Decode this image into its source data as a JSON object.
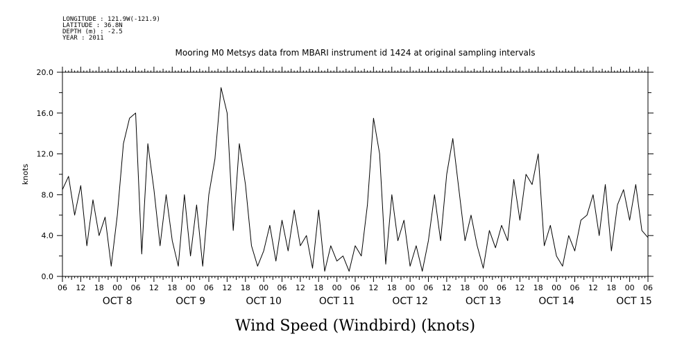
{
  "header": {
    "longitude": "LONGITUDE : 121.9W(-121.9)",
    "latitude": "LATITUDE : 36.8N",
    "depth": "DEPTH (m) : -2.5",
    "year": "YEAR : 2011"
  },
  "chart_data": {
    "type": "line",
    "title": "Mooring M0 Metsys data from MBARI instrument id 1424 at original sampling intervals",
    "xlabel": "Wind Speed (Windbird) (knots)",
    "ylabel": "knots",
    "ylim": [
      0,
      20
    ],
    "yticks": [
      "0.0",
      "4.0",
      "8.0",
      "12.0",
      "16.0",
      "20.0"
    ],
    "xlim": [
      "2011-10-07 06:00",
      "2011-10-15 06:00"
    ],
    "x_hour_ticks": [
      "06",
      "12",
      "18",
      "00",
      "06",
      "12",
      "18",
      "00",
      "06",
      "12",
      "18",
      "00",
      "06",
      "12",
      "18",
      "00",
      "06",
      "12",
      "18",
      "00",
      "06",
      "12",
      "18",
      "00",
      "06",
      "12",
      "18",
      "00",
      "06",
      "12",
      "18",
      "00",
      "06"
    ],
    "day_labels": [
      "OCT  8",
      "OCT  9",
      "OCT 10",
      "OCT 11",
      "OCT 12",
      "OCT 13",
      "OCT 14",
      "OCT 15"
    ],
    "grid": false,
    "series": [
      {
        "x": [
          "2011-10-07 06:00",
          "2011-10-07 08:00",
          "2011-10-07 10:00",
          "2011-10-07 12:00",
          "2011-10-07 14:00",
          "2011-10-07 16:00",
          "2011-10-07 18:00",
          "2011-10-07 20:00",
          "2011-10-07 22:00",
          "2011-10-08 00:00",
          "2011-10-08 02:00",
          "2011-10-08 04:00",
          "2011-10-08 06:00",
          "2011-10-08 08:00",
          "2011-10-08 10:00",
          "2011-10-08 12:00",
          "2011-10-08 14:00",
          "2011-10-08 16:00",
          "2011-10-08 18:00",
          "2011-10-08 20:00",
          "2011-10-08 22:00",
          "2011-10-09 00:00",
          "2011-10-09 02:00",
          "2011-10-09 04:00",
          "2011-10-09 06:00",
          "2011-10-09 08:00",
          "2011-10-09 10:00",
          "2011-10-09 12:00",
          "2011-10-09 14:00",
          "2011-10-09 16:00",
          "2011-10-09 18:00",
          "2011-10-09 20:00",
          "2011-10-09 22:00",
          "2011-10-10 00:00",
          "2011-10-10 02:00",
          "2011-10-10 04:00",
          "2011-10-10 06:00",
          "2011-10-10 08:00",
          "2011-10-10 10:00",
          "2011-10-10 12:00",
          "2011-10-10 14:00",
          "2011-10-10 16:00",
          "2011-10-10 18:00",
          "2011-10-10 20:00",
          "2011-10-10 22:00",
          "2011-10-11 00:00",
          "2011-10-11 02:00",
          "2011-10-11 04:00",
          "2011-10-11 06:00",
          "2011-10-11 08:00",
          "2011-10-11 10:00",
          "2011-10-11 12:00",
          "2011-10-11 14:00",
          "2011-10-11 16:00",
          "2011-10-11 18:00",
          "2011-10-11 20:00",
          "2011-10-11 22:00",
          "2011-10-12 00:00",
          "2011-10-12 02:00",
          "2011-10-12 04:00",
          "2011-10-12 06:00",
          "2011-10-12 08:00",
          "2011-10-12 10:00",
          "2011-10-12 12:00",
          "2011-10-12 14:00",
          "2011-10-12 16:00",
          "2011-10-12 18:00",
          "2011-10-12 20:00",
          "2011-10-12 22:00",
          "2011-10-13 00:00",
          "2011-10-13 02:00",
          "2011-10-13 04:00",
          "2011-10-13 06:00",
          "2011-10-13 08:00",
          "2011-10-13 10:00",
          "2011-10-13 12:00",
          "2011-10-13 14:00",
          "2011-10-13 16:00",
          "2011-10-13 18:00",
          "2011-10-13 20:00",
          "2011-10-13 22:00",
          "2011-10-14 00:00",
          "2011-10-14 02:00",
          "2011-10-14 04:00",
          "2011-10-14 06:00",
          "2011-10-14 08:00",
          "2011-10-14 10:00",
          "2011-10-14 12:00",
          "2011-10-14 14:00",
          "2011-10-14 16:00",
          "2011-10-14 18:00",
          "2011-10-14 20:00",
          "2011-10-14 22:00",
          "2011-10-15 00:00",
          "2011-10-15 02:00",
          "2011-10-15 04:00",
          "2011-10-15 06:00"
        ],
        "values": [
          8.5,
          9.8,
          6.0,
          8.9,
          3.0,
          7.5,
          4.0,
          5.8,
          1.0,
          6.0,
          13.0,
          15.5,
          16.0,
          2.2,
          13.0,
          8.5,
          3.0,
          8.0,
          3.5,
          1.0,
          8.0,
          2.0,
          7.0,
          1.0,
          8.0,
          11.5,
          18.5,
          16.0,
          4.5,
          13.0,
          9.0,
          3.0,
          1.0,
          2.5,
          5.0,
          1.5,
          5.5,
          2.5,
          6.5,
          3.0,
          4.0,
          0.8,
          6.5,
          0.5,
          3.0,
          1.5,
          2.0,
          0.5,
          3.0,
          2.0,
          7.0,
          15.5,
          12.0,
          1.2,
          8.0,
          3.5,
          5.5,
          1.0,
          3.0,
          0.5,
          3.5,
          8.0,
          3.5,
          10.0,
          13.5,
          8.5,
          3.5,
          6.0,
          3.0,
          0.8,
          4.5,
          2.8,
          5.0,
          3.5,
          9.5,
          5.5,
          10.0,
          9.0,
          12.0,
          3.0,
          5.0,
          2.0,
          1.0,
          4.0,
          2.5,
          5.5,
          6.0,
          8.0,
          4.0,
          9.0,
          2.5,
          7.0,
          8.5,
          5.5,
          9.0,
          4.5,
          3.8
        ]
      }
    ]
  }
}
